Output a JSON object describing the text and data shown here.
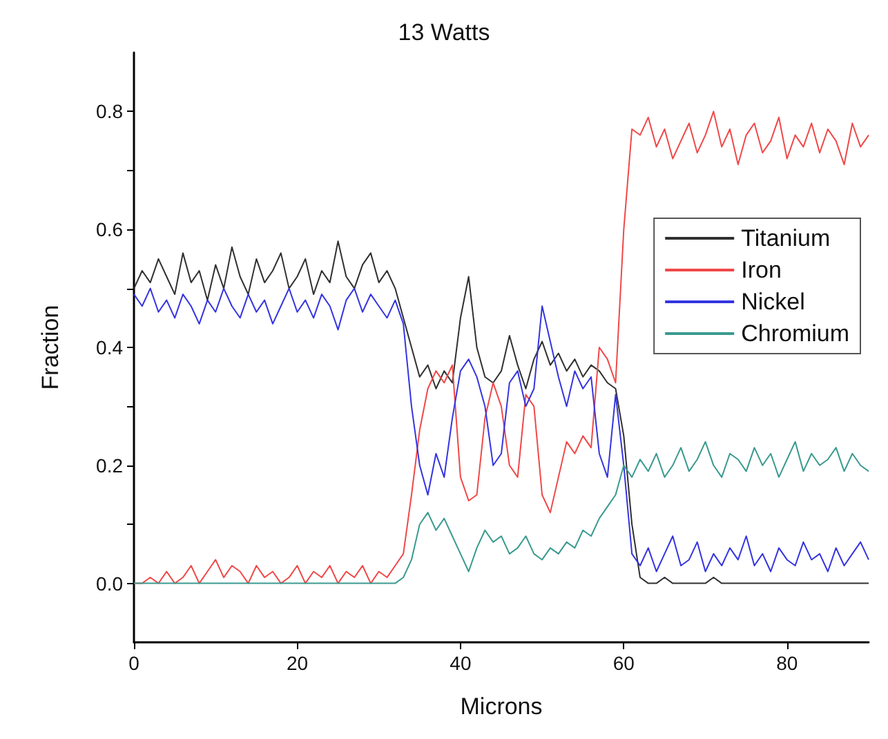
{
  "chart_data": {
    "type": "line",
    "title": "13 Watts",
    "xlabel": "Microns",
    "ylabel": "Fraction",
    "x": [
      0,
      1,
      2,
      3,
      4,
      5,
      6,
      7,
      8,
      9,
      10,
      11,
      12,
      13,
      14,
      15,
      16,
      17,
      18,
      19,
      20,
      21,
      22,
      23,
      24,
      25,
      26,
      27,
      28,
      29,
      30,
      31,
      32,
      33,
      34,
      35,
      36,
      37,
      38,
      39,
      40,
      41,
      42,
      43,
      44,
      45,
      46,
      47,
      48,
      49,
      50,
      51,
      52,
      53,
      54,
      55,
      56,
      57,
      58,
      59,
      60,
      61,
      62,
      63,
      64,
      65,
      66,
      67,
      68,
      69,
      70,
      71,
      72,
      73,
      74,
      75,
      76,
      77,
      78,
      79,
      80,
      81,
      82,
      83,
      84,
      85,
      86,
      87,
      88,
      89,
      90
    ],
    "series": [
      {
        "name": "Titanium",
        "color": "#303030",
        "values": [
          0.5,
          0.53,
          0.51,
          0.55,
          0.52,
          0.49,
          0.56,
          0.51,
          0.53,
          0.48,
          0.54,
          0.5,
          0.57,
          0.52,
          0.49,
          0.55,
          0.51,
          0.53,
          0.56,
          0.5,
          0.52,
          0.55,
          0.49,
          0.53,
          0.51,
          0.58,
          0.52,
          0.5,
          0.54,
          0.56,
          0.51,
          0.53,
          0.5,
          0.45,
          0.4,
          0.35,
          0.37,
          0.33,
          0.36,
          0.34,
          0.45,
          0.52,
          0.4,
          0.35,
          0.34,
          0.36,
          0.42,
          0.37,
          0.33,
          0.38,
          0.41,
          0.37,
          0.39,
          0.36,
          0.38,
          0.35,
          0.37,
          0.36,
          0.34,
          0.33,
          0.25,
          0.1,
          0.01,
          0,
          0,
          0.01,
          0,
          0,
          0,
          0,
          0,
          0.01,
          0,
          0,
          0,
          0,
          0,
          0,
          0,
          0,
          0,
          0,
          0,
          0,
          0,
          0,
          0,
          0,
          0,
          0,
          0
        ]
      },
      {
        "name": "Iron",
        "color": "#f04848",
        "values": [
          0,
          0,
          0.01,
          0,
          0.02,
          0,
          0.01,
          0.03,
          0,
          0.02,
          0.04,
          0.01,
          0.03,
          0.02,
          0,
          0.03,
          0.01,
          0.02,
          0,
          0.01,
          0.03,
          0,
          0.02,
          0.01,
          0.03,
          0,
          0.02,
          0.01,
          0.03,
          0,
          0.02,
          0.01,
          0.03,
          0.05,
          0.15,
          0.26,
          0.33,
          0.36,
          0.34,
          0.37,
          0.18,
          0.14,
          0.15,
          0.28,
          0.34,
          0.3,
          0.2,
          0.18,
          0.32,
          0.3,
          0.15,
          0.12,
          0.18,
          0.24,
          0.22,
          0.25,
          0.23,
          0.4,
          0.38,
          0.34,
          0.6,
          0.77,
          0.76,
          0.79,
          0.74,
          0.77,
          0.72,
          0.75,
          0.78,
          0.73,
          0.76,
          0.8,
          0.74,
          0.77,
          0.71,
          0.76,
          0.78,
          0.73,
          0.75,
          0.79,
          0.72,
          0.76,
          0.74,
          0.78,
          0.73,
          0.77,
          0.75,
          0.71,
          0.78,
          0.74,
          0.76
        ]
      },
      {
        "name": "Nickel",
        "color": "#3434e0",
        "values": [
          0.49,
          0.47,
          0.5,
          0.46,
          0.48,
          0.45,
          0.49,
          0.47,
          0.44,
          0.48,
          0.46,
          0.5,
          0.47,
          0.45,
          0.49,
          0.46,
          0.48,
          0.44,
          0.47,
          0.5,
          0.46,
          0.48,
          0.45,
          0.49,
          0.47,
          0.43,
          0.48,
          0.5,
          0.46,
          0.49,
          0.47,
          0.45,
          0.48,
          0.44,
          0.3,
          0.2,
          0.15,
          0.22,
          0.18,
          0.28,
          0.36,
          0.38,
          0.35,
          0.3,
          0.2,
          0.22,
          0.34,
          0.36,
          0.3,
          0.33,
          0.47,
          0.41,
          0.35,
          0.3,
          0.36,
          0.33,
          0.35,
          0.22,
          0.18,
          0.32,
          0.2,
          0.05,
          0.03,
          0.06,
          0.02,
          0.05,
          0.08,
          0.03,
          0.04,
          0.07,
          0.02,
          0.05,
          0.03,
          0.06,
          0.04,
          0.08,
          0.03,
          0.05,
          0.02,
          0.06,
          0.04,
          0.03,
          0.07,
          0.04,
          0.05,
          0.02,
          0.06,
          0.03,
          0.05,
          0.07,
          0.04
        ]
      },
      {
        "name": "Chromium",
        "color": "#3a9a8f",
        "values": [
          0,
          0,
          0,
          0,
          0,
          0,
          0,
          0,
          0,
          0,
          0,
          0,
          0,
          0,
          0,
          0,
          0,
          0,
          0,
          0,
          0,
          0,
          0,
          0,
          0,
          0,
          0,
          0,
          0,
          0,
          0,
          0,
          0,
          0.01,
          0.04,
          0.1,
          0.12,
          0.09,
          0.11,
          0.08,
          0.05,
          0.02,
          0.06,
          0.09,
          0.07,
          0.08,
          0.05,
          0.06,
          0.08,
          0.05,
          0.04,
          0.06,
          0.05,
          0.07,
          0.06,
          0.09,
          0.08,
          0.11,
          0.13,
          0.15,
          0.2,
          0.18,
          0.21,
          0.19,
          0.22,
          0.18,
          0.2,
          0.23,
          0.19,
          0.21,
          0.24,
          0.2,
          0.18,
          0.22,
          0.21,
          0.19,
          0.23,
          0.2,
          0.22,
          0.18,
          0.21,
          0.24,
          0.19,
          0.22,
          0.2,
          0.21,
          0.23,
          0.19,
          0.22,
          0.2,
          0.19
        ]
      }
    ],
    "xlim": [
      0,
      90
    ],
    "xticks": [
      0,
      20,
      40,
      60,
      80
    ],
    "ylim": [
      -0.1,
      0.9
    ],
    "yticks": [
      {
        "value": 0,
        "label": "0.0"
      },
      {
        "value": 0.1,
        "label": null
      },
      {
        "value": 0.2,
        "label": "0.2"
      },
      {
        "value": 0.3,
        "label": null
      },
      {
        "value": 0.4,
        "label": "0.4"
      },
      {
        "value": 0.5,
        "label": null
      },
      {
        "value": 0.6,
        "label": "0.6"
      },
      {
        "value": 0.7,
        "label": null
      },
      {
        "value": 0.8,
        "label": "0.8"
      }
    ],
    "grid": false,
    "legend": "right",
    "marker": "none",
    "line_style": "solid"
  }
}
